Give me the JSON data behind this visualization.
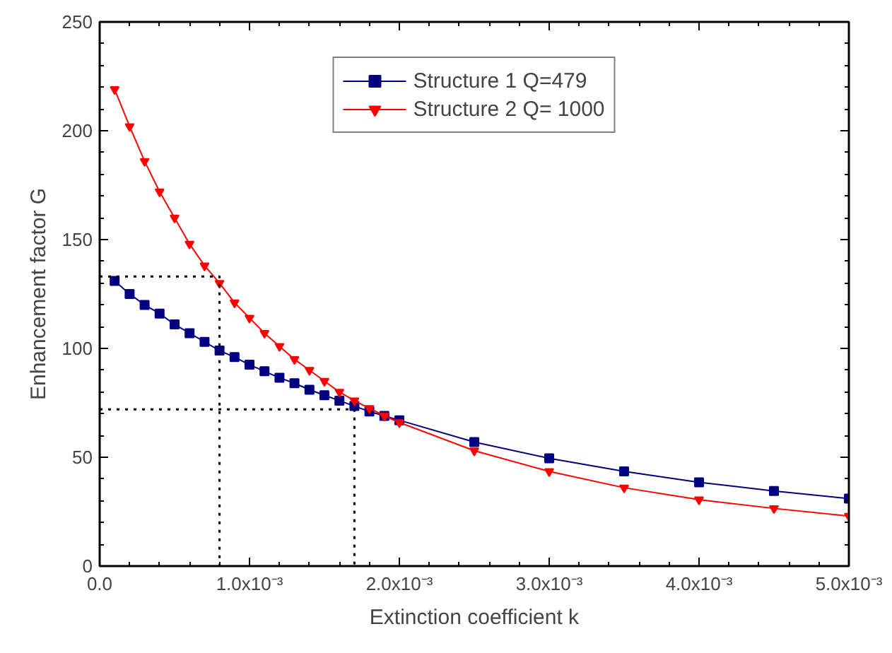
{
  "chart_data": {
    "type": "line",
    "xlabel": "Extinction coefficient k",
    "ylabel": "Enhancement factor G",
    "xlim": [
      0,
      0.005
    ],
    "ylim": [
      0,
      250
    ],
    "xticks": [
      {
        "value": 0,
        "label": "0.0"
      },
      {
        "value": 0.001,
        "label": "1.0x10⁻³"
      },
      {
        "value": 0.002,
        "label": "2.0x10⁻³"
      },
      {
        "value": 0.003,
        "label": "3.0x10⁻³"
      },
      {
        "value": 0.004,
        "label": "4.0x10⁻³"
      },
      {
        "value": 0.005,
        "label": "5.0x10⁻³"
      }
    ],
    "yticks": [
      0,
      50,
      100,
      150,
      200,
      250
    ],
    "grid": false,
    "legend": "top",
    "series": [
      {
        "name": "Structure 1 Q=479",
        "color": "#000080",
        "marker": "square",
        "line_style": "solid",
        "x": [
          0.0001,
          0.0002,
          0.0003,
          0.0004,
          0.0005,
          0.0006,
          0.0007,
          0.0008,
          0.0009,
          0.001,
          0.0011,
          0.0012,
          0.0013,
          0.0014,
          0.0015,
          0.0016,
          0.0017,
          0.0018,
          0.0019,
          0.002,
          0.0025,
          0.003,
          0.0035,
          0.004,
          0.0045,
          0.005
        ],
        "values": [
          131,
          125,
          120,
          116,
          111,
          107,
          103,
          99,
          96,
          92.5,
          89.5,
          86.5,
          84,
          81,
          78.5,
          76,
          73.5,
          71,
          69,
          67,
          57,
          49.5,
          43.5,
          38.5,
          34.5,
          31
        ]
      },
      {
        "name": "Structure 2 Q= 1000",
        "color": "#ff0000",
        "marker": "triangle",
        "line_style": "solid",
        "x": [
          0.0001,
          0.0002,
          0.0003,
          0.0004,
          0.0005,
          0.0006,
          0.0007,
          0.0008,
          0.0009,
          0.001,
          0.0011,
          0.0012,
          0.0013,
          0.0014,
          0.0015,
          0.0016,
          0.0017,
          0.0018,
          0.0019,
          0.002,
          0.0025,
          0.003,
          0.0035,
          0.004,
          0.0045,
          0.005
        ],
        "values": [
          219,
          202,
          186,
          172,
          160,
          148,
          138,
          130,
          121,
          114,
          107,
          101,
          95,
          90,
          85,
          80,
          76,
          72.5,
          69,
          66,
          53,
          43.5,
          36,
          30.5,
          26.5,
          23
        ]
      },
      {
        "color": "#000000",
        "marker": "none",
        "line_style": "dotted",
        "x": [
          0,
          0.0008,
          0.0008
        ],
        "values": [
          133,
          133,
          0
        ]
      },
      {
        "color": "#000000",
        "marker": "none",
        "line_style": "dotted",
        "x": [
          0,
          0.0017,
          0.0017
        ],
        "values": [
          72,
          72,
          0
        ]
      }
    ]
  }
}
